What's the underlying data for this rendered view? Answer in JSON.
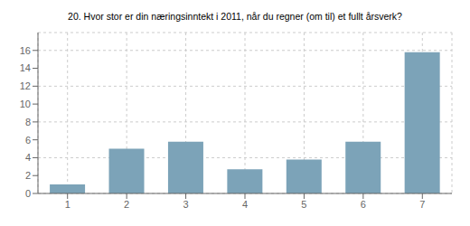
{
  "chart_data": {
    "type": "bar",
    "title": "20. Hvor stor er din næringsinntekt i 2011, når du regner (om til) et fullt årsverk?",
    "categories": [
      "1",
      "2",
      "3",
      "4",
      "5",
      "6",
      "7"
    ],
    "values": [
      1.0,
      5.0,
      5.8,
      2.7,
      3.8,
      5.8,
      15.8
    ],
    "color": "#7ca3b8",
    "ylim": [
      0,
      18
    ],
    "yticks": [
      0,
      2,
      4,
      6,
      8,
      10,
      12,
      14,
      16
    ],
    "grid": true
  }
}
